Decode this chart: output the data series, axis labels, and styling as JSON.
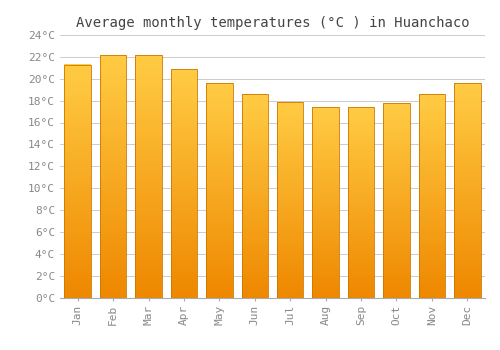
{
  "title": "Average monthly temperatures (°C ) in Huanchaco",
  "months": [
    "Jan",
    "Feb",
    "Mar",
    "Apr",
    "May",
    "Jun",
    "Jul",
    "Aug",
    "Sep",
    "Oct",
    "Nov",
    "Dec"
  ],
  "temperatures": [
    21.3,
    22.2,
    22.2,
    20.9,
    19.6,
    18.6,
    17.9,
    17.4,
    17.4,
    17.8,
    18.6,
    19.6
  ],
  "ylim": [
    0,
    24
  ],
  "yticks": [
    0,
    2,
    4,
    6,
    8,
    10,
    12,
    14,
    16,
    18,
    20,
    22,
    24
  ],
  "bar_color_light": "#FFCC44",
  "bar_color_dark": "#EE8800",
  "bar_edge_color": "#CC7700",
  "background_color": "#FFFFFF",
  "grid_color": "#CCCCCC",
  "title_fontsize": 10,
  "tick_fontsize": 8,
  "title_color": "#444444",
  "tick_color": "#888888",
  "bar_width": 0.75
}
